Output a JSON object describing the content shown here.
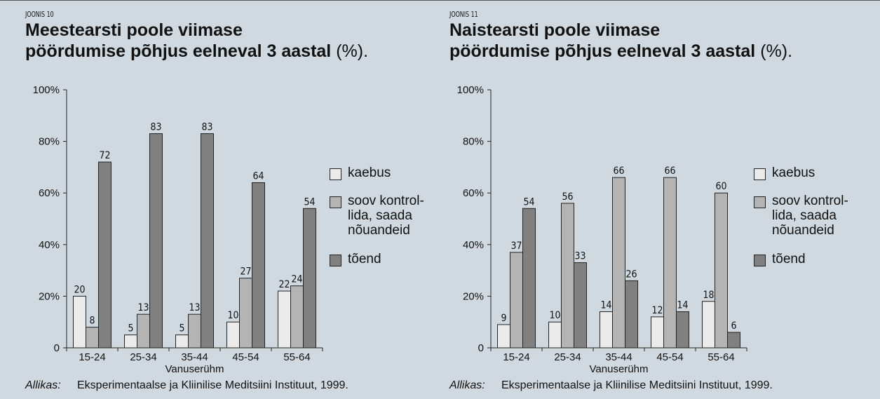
{
  "chart_data": [
    {
      "type": "bar",
      "label": "JOONIS 10",
      "title": [
        "Meestearsti poole viimase",
        "pöördumise põhjus eelneval 3 aastal"
      ],
      "title_unit": "(%).",
      "categories": [
        "15-24",
        "25-34",
        "35-44",
        "45-54",
        "55-64"
      ],
      "series": [
        {
          "name": "kaebus",
          "color": "#ebebeb",
          "values": [
            20,
            5,
            5,
            10,
            22
          ]
        },
        {
          "name": "soov kontrol-lida, saada nõuandeid",
          "color": "#b4b4b4",
          "values": [
            8,
            13,
            13,
            27,
            24
          ]
        },
        {
          "name": "tõend",
          "color": "#808080",
          "values": [
            72,
            83,
            83,
            64,
            54
          ]
        }
      ],
      "ylim": [
        0,
        100
      ],
      "yticks": [
        0,
        {
          "value": 20,
          "label": "20%"
        },
        {
          "value": 40,
          "label": "40%"
        },
        {
          "value": 60,
          "label": "60%"
        },
        {
          "value": 80,
          "label": "80%"
        },
        {
          "value": 100,
          "label": "100%"
        }
      ],
      "xlabel": "Vanuserühm",
      "legend": "right",
      "grid": false,
      "source_label": "Allikas:",
      "source": "Eksperimentaalse ja Kliinilise Meditsiini Instituut, 1999."
    },
    {
      "type": "bar",
      "label": "JOONIS 11",
      "title": [
        "Naistearsti poole viimase",
        "pöördumise põhjus eelneval 3 aastal"
      ],
      "title_unit": "(%).",
      "categories": [
        "15-24",
        "25-34",
        "35-44",
        "45-54",
        "55-64"
      ],
      "series": [
        {
          "name": "kaebus",
          "color": "#ebebeb",
          "values": [
            9,
            10,
            14,
            12,
            18
          ]
        },
        {
          "name": "soov kontrol-lida, saada nõuandeid",
          "color": "#b4b4b4",
          "values": [
            37,
            56,
            66,
            66,
            60
          ]
        },
        {
          "name": "tõend",
          "color": "#808080",
          "values": [
            54,
            33,
            26,
            14,
            6
          ]
        }
      ],
      "ylim": [
        0,
        100
      ],
      "yticks": [
        0,
        {
          "value": 20,
          "label": "20%"
        },
        {
          "value": 40,
          "label": "40%"
        },
        {
          "value": 60,
          "label": "60%"
        },
        {
          "value": 80,
          "label": "80%"
        },
        {
          "value": 100,
          "label": "100%"
        }
      ],
      "xlabel": "Vanuserühm",
      "legend": "right",
      "grid": false,
      "source_label": "Allikas:",
      "source": "Eksperimentaalse ja Kliinilise Meditsiini Instituut, 1999."
    }
  ]
}
